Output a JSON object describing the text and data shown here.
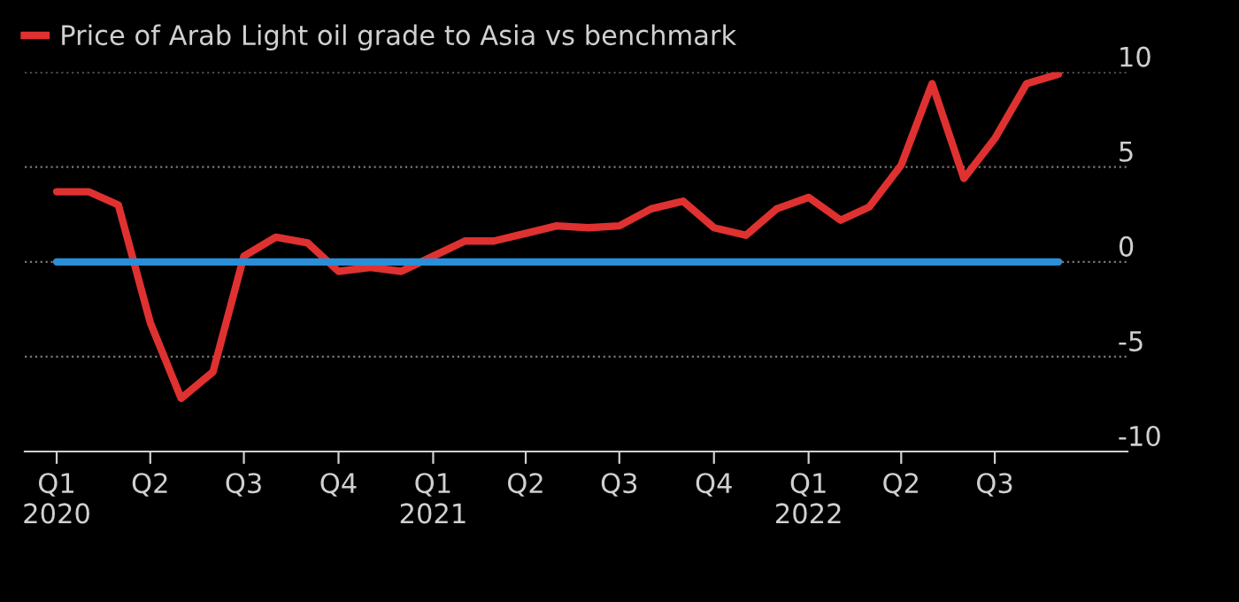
{
  "chart_data": {
    "type": "line",
    "x": [
      "2020-01",
      "2020-02",
      "2020-03",
      "2020-04",
      "2020-05",
      "2020-06",
      "2020-07",
      "2020-08",
      "2020-09",
      "2020-10",
      "2020-11",
      "2020-12",
      "2021-01",
      "2021-02",
      "2021-03",
      "2021-04",
      "2021-05",
      "2021-06",
      "2021-07",
      "2021-08",
      "2021-09",
      "2021-10",
      "2021-11",
      "2021-12",
      "2022-01",
      "2022-02",
      "2022-03",
      "2022-04",
      "2022-05",
      "2022-06",
      "2022-07",
      "2022-08",
      "2022-09"
    ],
    "series": [
      {
        "name": "Price of Arab Light oil grade to Asia vs benchmark",
        "color": "#e03131",
        "values": [
          3.7,
          3.7,
          3.0,
          -3.2,
          -7.2,
          -5.8,
          0.3,
          1.3,
          1.0,
          -0.5,
          -0.3,
          -0.5,
          0.3,
          1.1,
          1.1,
          1.5,
          1.9,
          1.8,
          1.9,
          2.8,
          3.2,
          1.8,
          1.4,
          2.8,
          3.4,
          2.2,
          2.9,
          5.1,
          9.4,
          4.4,
          6.5,
          9.4,
          9.9
        ]
      },
      {
        "color": "#2a8fd8",
        "values": [
          0,
          0,
          0,
          0,
          0,
          0,
          0,
          0,
          0,
          0,
          0,
          0,
          0,
          0,
          0,
          0,
          0,
          0,
          0,
          0,
          0,
          0,
          0,
          0,
          0,
          0,
          0,
          0,
          0,
          0,
          0,
          0,
          0
        ]
      }
    ],
    "xlim": [
      "2019-12-01",
      "2022-11-07"
    ],
    "xticks": [
      {
        "value": "2020-01",
        "label": "Q1\n2020"
      },
      {
        "value": "2020-04",
        "label": "Q2"
      },
      {
        "value": "2020-07",
        "label": "Q3"
      },
      {
        "value": "2020-10",
        "label": "Q4"
      },
      {
        "value": "2021-01",
        "label": "Q1\n2021"
      },
      {
        "value": "2021-04",
        "label": "Q2"
      },
      {
        "value": "2021-07",
        "label": "Q3"
      },
      {
        "value": "2021-10",
        "label": "Q4"
      },
      {
        "value": "2022-01",
        "label": "Q1\n2022"
      },
      {
        "value": "2022-04",
        "label": "Q2"
      },
      {
        "value": "2022-07",
        "label": "Q3"
      }
    ],
    "ylim": [
      -10,
      10
    ],
    "yticks": [
      -10,
      -5,
      0,
      5,
      10
    ],
    "grid": "y",
    "legend": "top left",
    "line_style": "solid"
  }
}
